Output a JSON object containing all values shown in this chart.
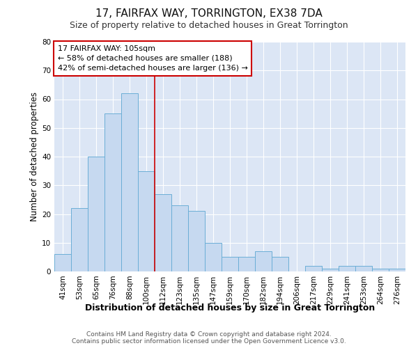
{
  "title": "17, FAIRFAX WAY, TORRINGTON, EX38 7DA",
  "subtitle": "Size of property relative to detached houses in Great Torrington",
  "xlabel": "Distribution of detached houses by size in Great Torrington",
  "ylabel": "Number of detached properties",
  "categories": [
    "41sqm",
    "53sqm",
    "65sqm",
    "76sqm",
    "88sqm",
    "100sqm",
    "112sqm",
    "123sqm",
    "135sqm",
    "147sqm",
    "159sqm",
    "170sqm",
    "182sqm",
    "194sqm",
    "206sqm",
    "217sqm",
    "229sqm",
    "241sqm",
    "253sqm",
    "264sqm",
    "276sqm"
  ],
  "values": [
    6,
    22,
    40,
    55,
    62,
    35,
    27,
    23,
    21,
    10,
    5,
    5,
    7,
    5,
    0,
    2,
    1,
    2,
    2,
    1,
    1
  ],
  "bar_fill_color": "#c6d9f0",
  "bar_edge_color": "#6baed6",
  "vline_color": "#cc0000",
  "vline_x": 5.5,
  "annotation_text": "17 FAIRFAX WAY: 105sqm\n← 58% of detached houses are smaller (188)\n42% of semi-detached houses are larger (136) →",
  "annotation_box_facecolor": "#ffffff",
  "annotation_box_edgecolor": "#cc0000",
  "ylim": [
    0,
    80
  ],
  "yticks": [
    0,
    10,
    20,
    30,
    40,
    50,
    60,
    70,
    80
  ],
  "ax_bg_color": "#dce6f5",
  "grid_color": "#ffffff",
  "title_fontsize": 11,
  "subtitle_fontsize": 9,
  "xlabel_fontsize": 9,
  "ylabel_fontsize": 8.5,
  "tick_fontsize": 7.5,
  "annotation_fontsize": 8,
  "footer_fontsize": 6.5,
  "footer_text": "Contains HM Land Registry data © Crown copyright and database right 2024.\nContains public sector information licensed under the Open Government Licence v3.0."
}
